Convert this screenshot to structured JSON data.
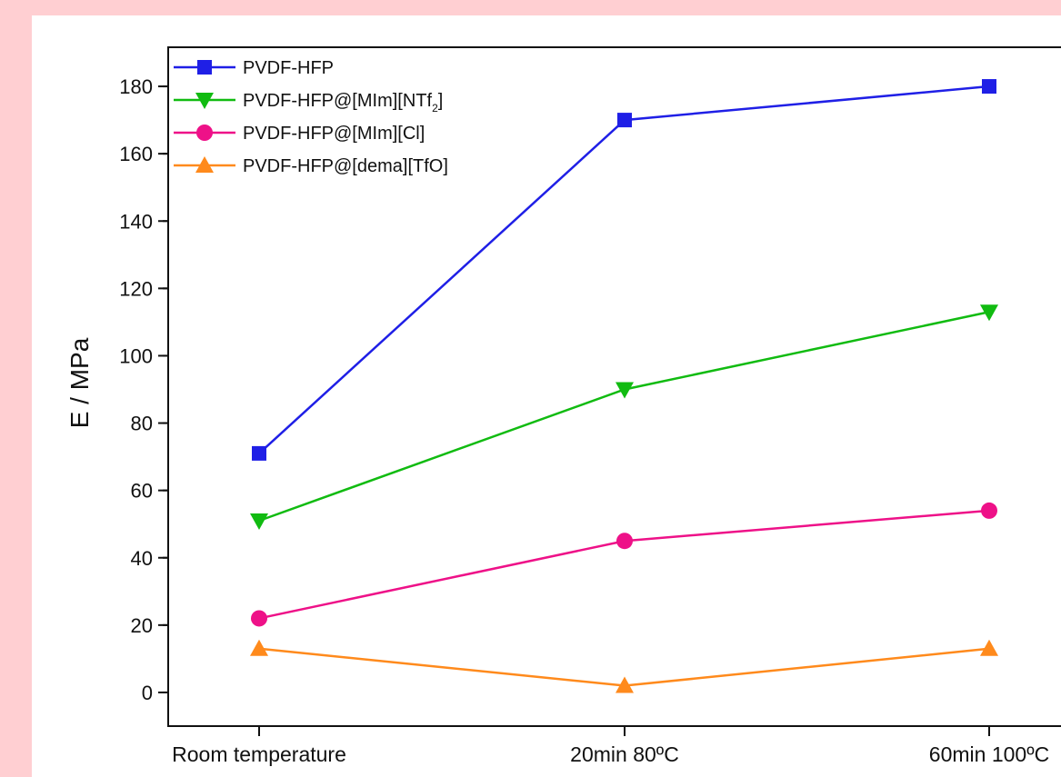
{
  "chart_data": {
    "type": "line",
    "categories": [
      "Room temperature",
      "20min 80ºC",
      "60min 100ºC"
    ],
    "ylabel": "E / MPa",
    "xlabel": "",
    "ylim": [
      -10,
      190
    ],
    "yticks": [
      0,
      20,
      40,
      60,
      80,
      100,
      120,
      140,
      160,
      180
    ],
    "grid": false,
    "legend_position": "top-left",
    "series": [
      {
        "name": "PVDF-HFP",
        "name_main": "PVDF-HFP",
        "name_sub": "",
        "name_tail": "",
        "color": "#1f1fe6",
        "marker": "square",
        "values": [
          71,
          170,
          180
        ]
      },
      {
        "name": "PVDF-HFP@[MIm][NTf2]",
        "name_main": "PVDF-HFP@[MIm][NTf",
        "name_sub": "2",
        "name_tail": "]",
        "color": "#11bb11",
        "marker": "triangle-down",
        "values": [
          51,
          90,
          113
        ]
      },
      {
        "name": "PVDF-HFP@[MIm][Cl]",
        "name_main": "PVDF-HFP@[MIm][Cl]",
        "name_sub": "",
        "name_tail": "",
        "color": "#ee1188",
        "marker": "circle",
        "values": [
          22,
          45,
          54
        ]
      },
      {
        "name": "PVDF-HFP@[dema][TfO]",
        "name_main": "PVDF-HFP@[dema][TfO]",
        "name_sub": "",
        "name_tail": "",
        "color": "#ff8a1c",
        "marker": "triangle-up",
        "values": [
          13,
          2,
          13
        ]
      }
    ]
  }
}
